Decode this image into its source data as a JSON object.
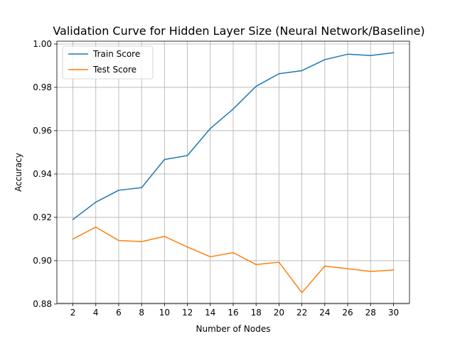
{
  "chart_data": {
    "type": "line",
    "title": "Validation Curve for Hidden Layer Size (Neural Network/Baseline)",
    "xlabel": "Number of Nodes",
    "ylabel": "Accuracy",
    "x": [
      2,
      4,
      6,
      8,
      10,
      12,
      14,
      16,
      18,
      20,
      22,
      24,
      26,
      28,
      30
    ],
    "xlim": [
      0.6,
      31.4
    ],
    "ylim": [
      0.8803,
      1.0013
    ],
    "yticks": [
      0.88,
      0.9,
      0.92,
      0.94,
      0.96,
      0.98,
      1.0
    ],
    "ytick_labels": [
      "0.88",
      "0.90",
      "0.92",
      "0.94",
      "0.96",
      "0.98",
      "1.00"
    ],
    "grid": true,
    "legend_position": "top-left",
    "series": [
      {
        "name": "Train Score",
        "color": "#1f77b4",
        "values": [
          0.919,
          0.927,
          0.9325,
          0.9337,
          0.9467,
          0.9485,
          0.961,
          0.97,
          0.9805,
          0.9863,
          0.9877,
          0.9928,
          0.9953,
          0.9947,
          0.996
        ]
      },
      {
        "name": "Test Score",
        "color": "#ff7f0e",
        "values": [
          0.91,
          0.9155,
          0.9093,
          0.9088,
          0.9112,
          0.9063,
          0.9018,
          0.9037,
          0.8982,
          0.8993,
          0.8852,
          0.8975,
          0.8963,
          0.895,
          0.8957
        ]
      }
    ]
  }
}
